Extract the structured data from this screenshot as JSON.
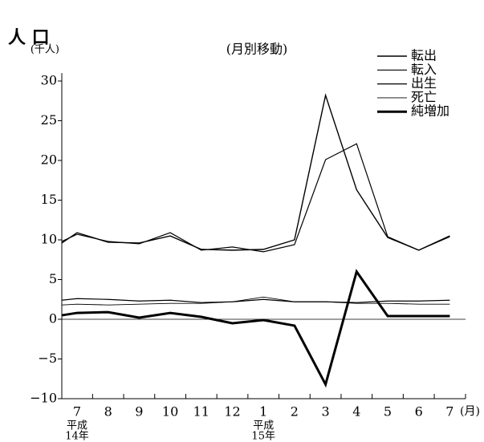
{
  "chart_data": {
    "type": "line",
    "title": "人 口",
    "subtitle": "(月別移動)",
    "y_label": "(千人)",
    "x_label": "(月)",
    "annotations": [
      [
        "平成",
        "14年"
      ],
      [
        "平成",
        "15年"
      ]
    ],
    "categories": [
      null,
      "7",
      "8",
      "9",
      "10",
      "11",
      "12",
      "1",
      "2",
      "3",
      "4",
      "5",
      "6",
      "7"
    ],
    "series": [
      {
        "name": "転出",
        "color": "#000000",
        "width": 1.4,
        "values": [
          9.6,
          10.9,
          9.7,
          9.6,
          10.5,
          8.8,
          8.7,
          8.8,
          10.0,
          28.2,
          16.3,
          10.3,
          8.7,
          10.5
        ]
      },
      {
        "name": "転入",
        "color": "#000000",
        "width": 1.2,
        "values": [
          9.8,
          10.7,
          9.8,
          9.5,
          10.9,
          8.7,
          9.1,
          8.5,
          9.4,
          20.1,
          22.1,
          10.4,
          8.7,
          10.4
        ]
      },
      {
        "name": "出生",
        "color": "#000000",
        "width": 1.2,
        "values": [
          2.4,
          2.6,
          2.5,
          2.3,
          2.4,
          2.1,
          2.2,
          2.5,
          2.2,
          2.2,
          2.1,
          2.3,
          2.3,
          2.4
        ]
      },
      {
        "name": "死亡",
        "color": "#000000",
        "width": 0.9,
        "values": [
          1.8,
          1.9,
          1.8,
          1.9,
          2.0,
          2.0,
          2.2,
          2.8,
          2.2,
          2.2,
          2.0,
          2.0,
          1.9,
          1.9
        ]
      },
      {
        "name": "純増加",
        "color": "#000000",
        "width": 3,
        "values": [
          0.5,
          0.8,
          0.9,
          0.2,
          0.8,
          0.3,
          -0.5,
          -0.1,
          -0.8,
          -8.2,
          6.0,
          0.4,
          0.4,
          0.4
        ]
      }
    ],
    "ylim": [
      -10,
      31
    ],
    "yticks": [
      {
        "value": -10,
        "label": "−10"
      },
      {
        "value": -5,
        "label": "−5"
      },
      0,
      5,
      10,
      15,
      20,
      25,
      30
    ],
    "legend": "top-right"
  }
}
